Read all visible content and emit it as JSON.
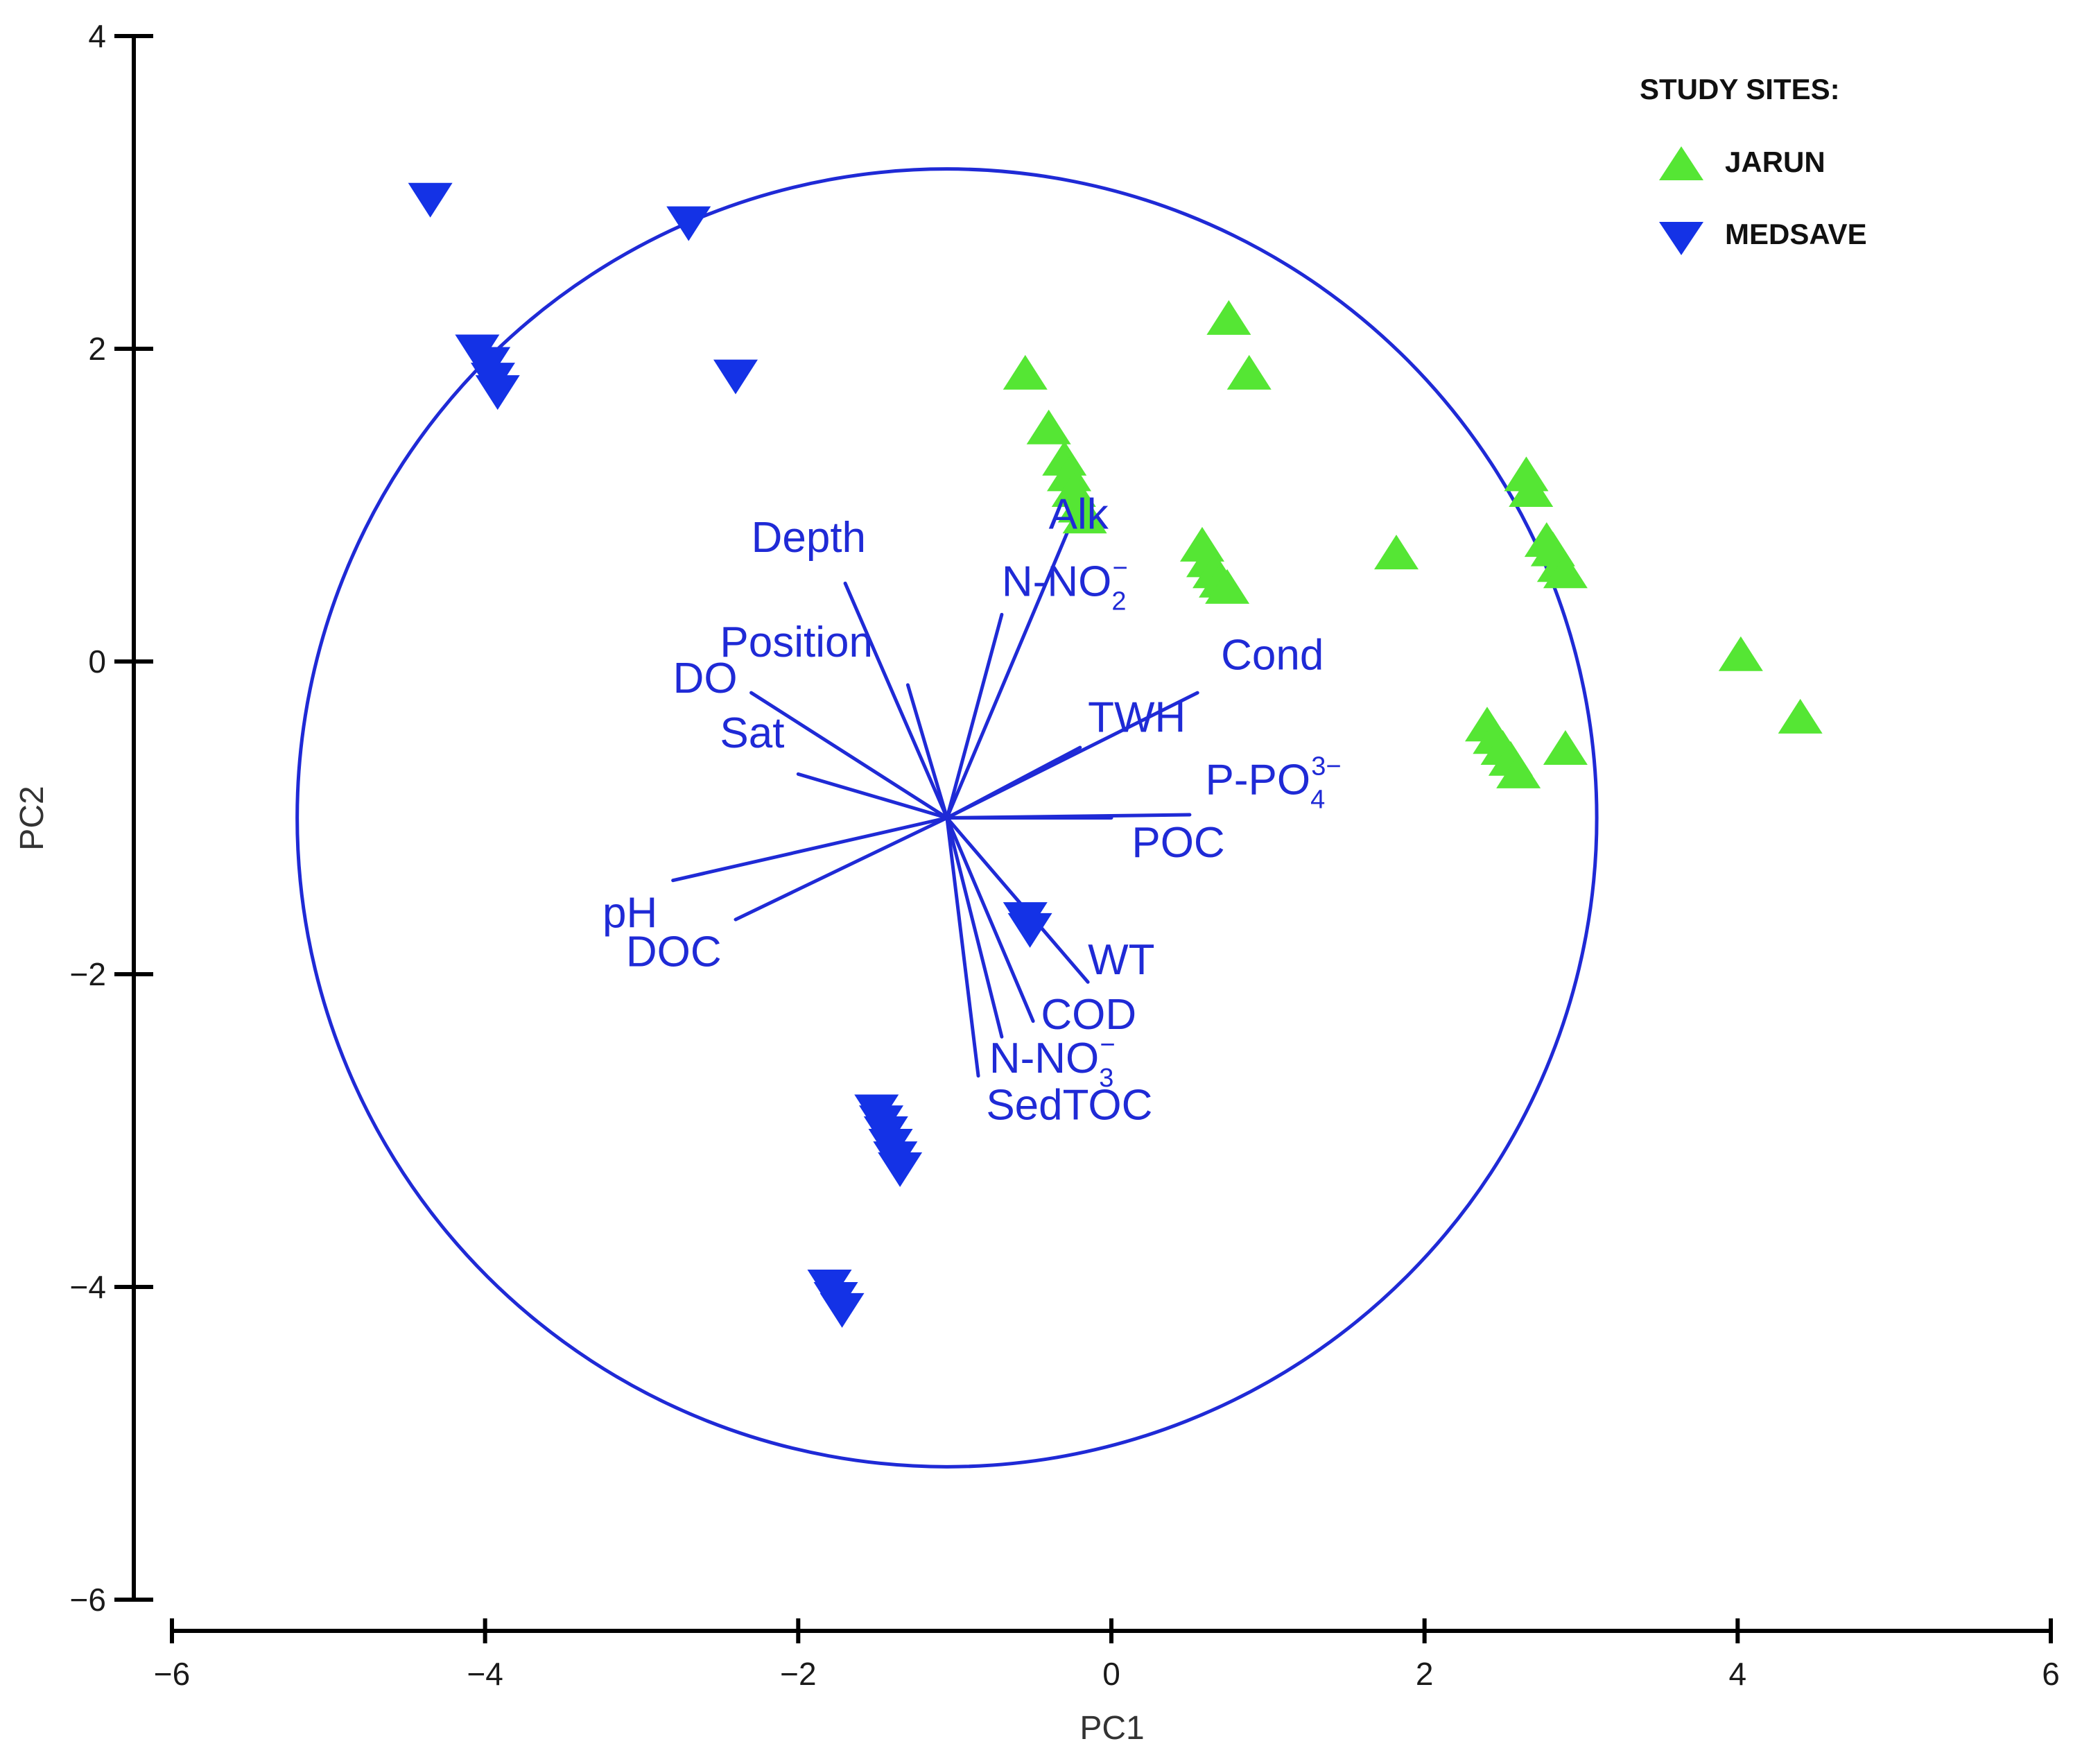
{
  "chart_data": {
    "type": "scatter",
    "subtype": "pca-biplot",
    "xlabel": "PC1",
    "ylabel": "PC2",
    "xlim": [
      -6,
      6
    ],
    "ylim": [
      -6,
      4
    ],
    "xticks": [
      -6,
      -4,
      -2,
      0,
      2,
      4,
      6
    ],
    "yticks": [
      -6,
      -4,
      -2,
      0,
      2,
      4
    ],
    "xtick_labels": [
      "−6",
      "−4",
      "−2",
      "0",
      "2",
      "4",
      "6"
    ],
    "ytick_labels": [
      "−6",
      "−4",
      "−2",
      "0",
      "2",
      "4"
    ],
    "grid": false,
    "legend": {
      "title": "STUDY SITES:",
      "placement": "top-right",
      "entries": [
        "JARUN",
        "MEDSAVE"
      ]
    },
    "colors": {
      "jarun": "#55e634",
      "medsave": "#1432e6",
      "vectors": "#1f2ad6",
      "axes": "#000000"
    },
    "correlation_circle": {
      "center": [
        -1.05,
        -1.0
      ],
      "radius": 4.15
    },
    "series": [
      {
        "name": "JARUN",
        "marker": "triangle-up",
        "points": [
          [
            -0.55,
            1.85
          ],
          [
            0.75,
            2.2
          ],
          [
            0.88,
            1.85
          ],
          [
            -0.4,
            1.5
          ],
          [
            -0.3,
            1.3
          ],
          [
            -0.27,
            1.2
          ],
          [
            -0.24,
            1.1
          ],
          [
            -0.2,
            1.0
          ],
          [
            -0.17,
            0.93
          ],
          [
            0.58,
            0.75
          ],
          [
            0.62,
            0.65
          ],
          [
            0.66,
            0.58
          ],
          [
            0.7,
            0.52
          ],
          [
            0.74,
            0.48
          ],
          [
            1.82,
            0.7
          ],
          [
            2.65,
            1.2
          ],
          [
            2.68,
            1.1
          ],
          [
            2.78,
            0.78
          ],
          [
            2.82,
            0.72
          ],
          [
            2.86,
            0.62
          ],
          [
            2.9,
            0.58
          ],
          [
            4.02,
            0.05
          ],
          [
            4.4,
            -0.35
          ],
          [
            2.4,
            -0.4
          ],
          [
            2.45,
            -0.48
          ],
          [
            2.5,
            -0.55
          ],
          [
            2.55,
            -0.62
          ],
          [
            2.6,
            -0.7
          ],
          [
            2.9,
            -0.55
          ]
        ]
      },
      {
        "name": "MEDSAVE",
        "marker": "triangle-down",
        "points": [
          [
            -4.35,
            2.95
          ],
          [
            -2.7,
            2.8
          ],
          [
            -4.05,
            1.98
          ],
          [
            -3.98,
            1.9
          ],
          [
            -3.95,
            1.8
          ],
          [
            -3.92,
            1.72
          ],
          [
            -2.4,
            1.82
          ],
          [
            -0.55,
            -1.65
          ],
          [
            -0.52,
            -1.72
          ],
          [
            -1.5,
            -2.88
          ],
          [
            -1.47,
            -2.95
          ],
          [
            -1.44,
            -3.02
          ],
          [
            -1.41,
            -3.1
          ],
          [
            -1.38,
            -3.18
          ],
          [
            -1.35,
            -3.25
          ],
          [
            -1.8,
            -4.0
          ],
          [
            -1.76,
            -4.08
          ],
          [
            -1.72,
            -4.15
          ]
        ]
      }
    ],
    "loadings_origin": [
      -1.05,
      -1.0
    ],
    "loadings": [
      {
        "label": "Depth",
        "end": [
          -1.7,
          0.5
        ],
        "label_pos": [
          -2.3,
          0.7
        ]
      },
      {
        "label": "Position",
        "end": [
          -1.3,
          -0.15
        ],
        "label_pos": [
          -2.5,
          0.03
        ]
      },
      {
        "label": "DO",
        "end": [
          -2.3,
          -0.2
        ],
        "label_pos": [
          -2.8,
          -0.2
        ]
      },
      {
        "label": "Sat",
        "end": [
          -2.0,
          -0.72
        ],
        "label_pos": [
          -2.5,
          -0.55
        ]
      },
      {
        "label": "Alk",
        "end": [
          -0.25,
          0.9
        ],
        "label_pos": [
          -0.4,
          0.85
        ]
      },
      {
        "label": "N-NO",
        "sub": "2",
        "sup": "−",
        "end": [
          -0.7,
          0.3
        ],
        "label_pos": [
          -0.7,
          0.42
        ]
      },
      {
        "label": "Cond",
        "end": [
          0.55,
          -0.2
        ],
        "label_pos": [
          0.7,
          -0.05
        ]
      },
      {
        "label": "TWH",
        "end": [
          -0.2,
          -0.55
        ],
        "label_pos": [
          -0.15,
          -0.45
        ]
      },
      {
        "label": "P-PO",
        "sub": "4",
        "sup": "3−",
        "end": [
          0.5,
          -0.98
        ],
        "label_pos": [
          0.6,
          -0.85
        ]
      },
      {
        "label": "POC",
        "end": [
          0.0,
          -1.0
        ],
        "label_pos": [
          0.13,
          -1.25
        ]
      },
      {
        "label": "pH",
        "end": [
          -2.8,
          -1.4
        ],
        "label_pos": [
          -3.25,
          -1.7
        ]
      },
      {
        "label": "DOC",
        "end": [
          -2.4,
          -1.65
        ],
        "label_pos": [
          -3.1,
          -1.95
        ]
      },
      {
        "label": "WT",
        "end": [
          -0.15,
          -2.05
        ],
        "label_pos": [
          -0.15,
          -2.0
        ]
      },
      {
        "label": "COD",
        "end": [
          -0.5,
          -2.3
        ],
        "label_pos": [
          -0.45,
          -2.35
        ]
      },
      {
        "label": "N-NO",
        "sub": "3",
        "sup": "−",
        "end": [
          -0.7,
          -2.4
        ],
        "label_pos": [
          -0.78,
          -2.63
        ]
      },
      {
        "label": "SedTOC",
        "end": [
          -0.85,
          -2.65
        ],
        "label_pos": [
          -0.8,
          -2.93
        ]
      }
    ]
  }
}
